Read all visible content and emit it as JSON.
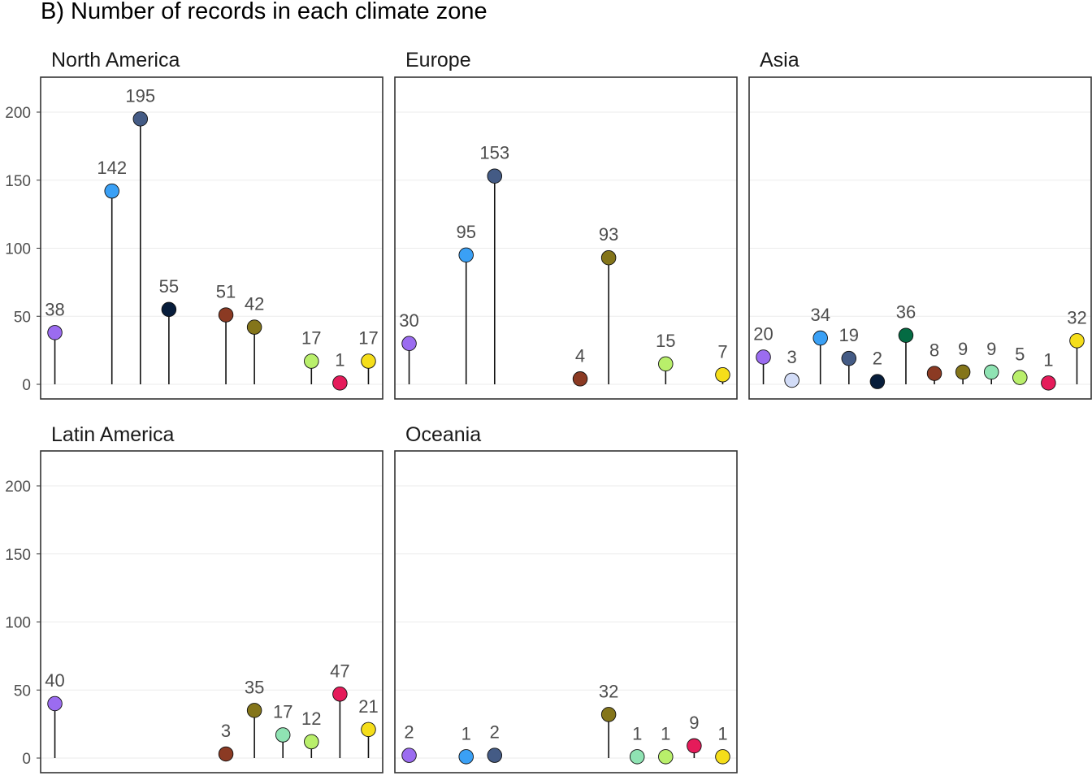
{
  "chart_data": {
    "type": "lollipop",
    "title": "B) Number of records in each climate zone",
    "xlabel": "",
    "ylabel": "",
    "ylim": [
      0,
      220
    ],
    "yticks": [
      0,
      50,
      100,
      150,
      200
    ],
    "grid": true,
    "legend": "none",
    "zone_colors": [
      "#9b6cf0",
      "#d2dcf7",
      "#3aa0f5",
      "#445b85",
      "#071d3b",
      "#046b43",
      "#8b3a23",
      "#84751a",
      "#8fe3b3",
      "#b9ef6b",
      "#e51b5a",
      "#f5de1a"
    ],
    "panels": [
      {
        "name": "North America",
        "points": [
          {
            "zone": 0,
            "value": 38
          },
          {
            "zone": 2,
            "value": 142
          },
          {
            "zone": 3,
            "value": 195
          },
          {
            "zone": 4,
            "value": 55
          },
          {
            "zone": 6,
            "value": 51
          },
          {
            "zone": 7,
            "value": 42
          },
          {
            "zone": 9,
            "value": 17
          },
          {
            "zone": 10,
            "value": 1
          },
          {
            "zone": 11,
            "value": 17
          }
        ]
      },
      {
        "name": "Europe",
        "points": [
          {
            "zone": 0,
            "value": 30
          },
          {
            "zone": 2,
            "value": 95
          },
          {
            "zone": 3,
            "value": 153
          },
          {
            "zone": 6,
            "value": 4
          },
          {
            "zone": 7,
            "value": 93
          },
          {
            "zone": 9,
            "value": 15
          },
          {
            "zone": 11,
            "value": 7
          }
        ]
      },
      {
        "name": "Asia",
        "points": [
          {
            "zone": 0,
            "value": 20
          },
          {
            "zone": 1,
            "value": 3
          },
          {
            "zone": 2,
            "value": 34
          },
          {
            "zone": 3,
            "value": 19
          },
          {
            "zone": 4,
            "value": 2
          },
          {
            "zone": 5,
            "value": 36
          },
          {
            "zone": 6,
            "value": 8
          },
          {
            "zone": 7,
            "value": 9
          },
          {
            "zone": 8,
            "value": 9
          },
          {
            "zone": 9,
            "value": 5
          },
          {
            "zone": 10,
            "value": 1
          },
          {
            "zone": 11,
            "value": 32
          }
        ]
      },
      {
        "name": "Latin America",
        "points": [
          {
            "zone": 0,
            "value": 40
          },
          {
            "zone": 6,
            "value": 3
          },
          {
            "zone": 7,
            "value": 35
          },
          {
            "zone": 8,
            "value": 17
          },
          {
            "zone": 9,
            "value": 12
          },
          {
            "zone": 10,
            "value": 47
          },
          {
            "zone": 11,
            "value": 21
          }
        ]
      },
      {
        "name": "Oceania",
        "points": [
          {
            "zone": 0,
            "value": 2
          },
          {
            "zone": 2,
            "value": 1
          },
          {
            "zone": 3,
            "value": 2
          },
          {
            "zone": 7,
            "value": 32
          },
          {
            "zone": 8,
            "value": 1
          },
          {
            "zone": 9,
            "value": 1
          },
          {
            "zone": 10,
            "value": 9
          },
          {
            "zone": 11,
            "value": 1
          }
        ]
      }
    ]
  }
}
